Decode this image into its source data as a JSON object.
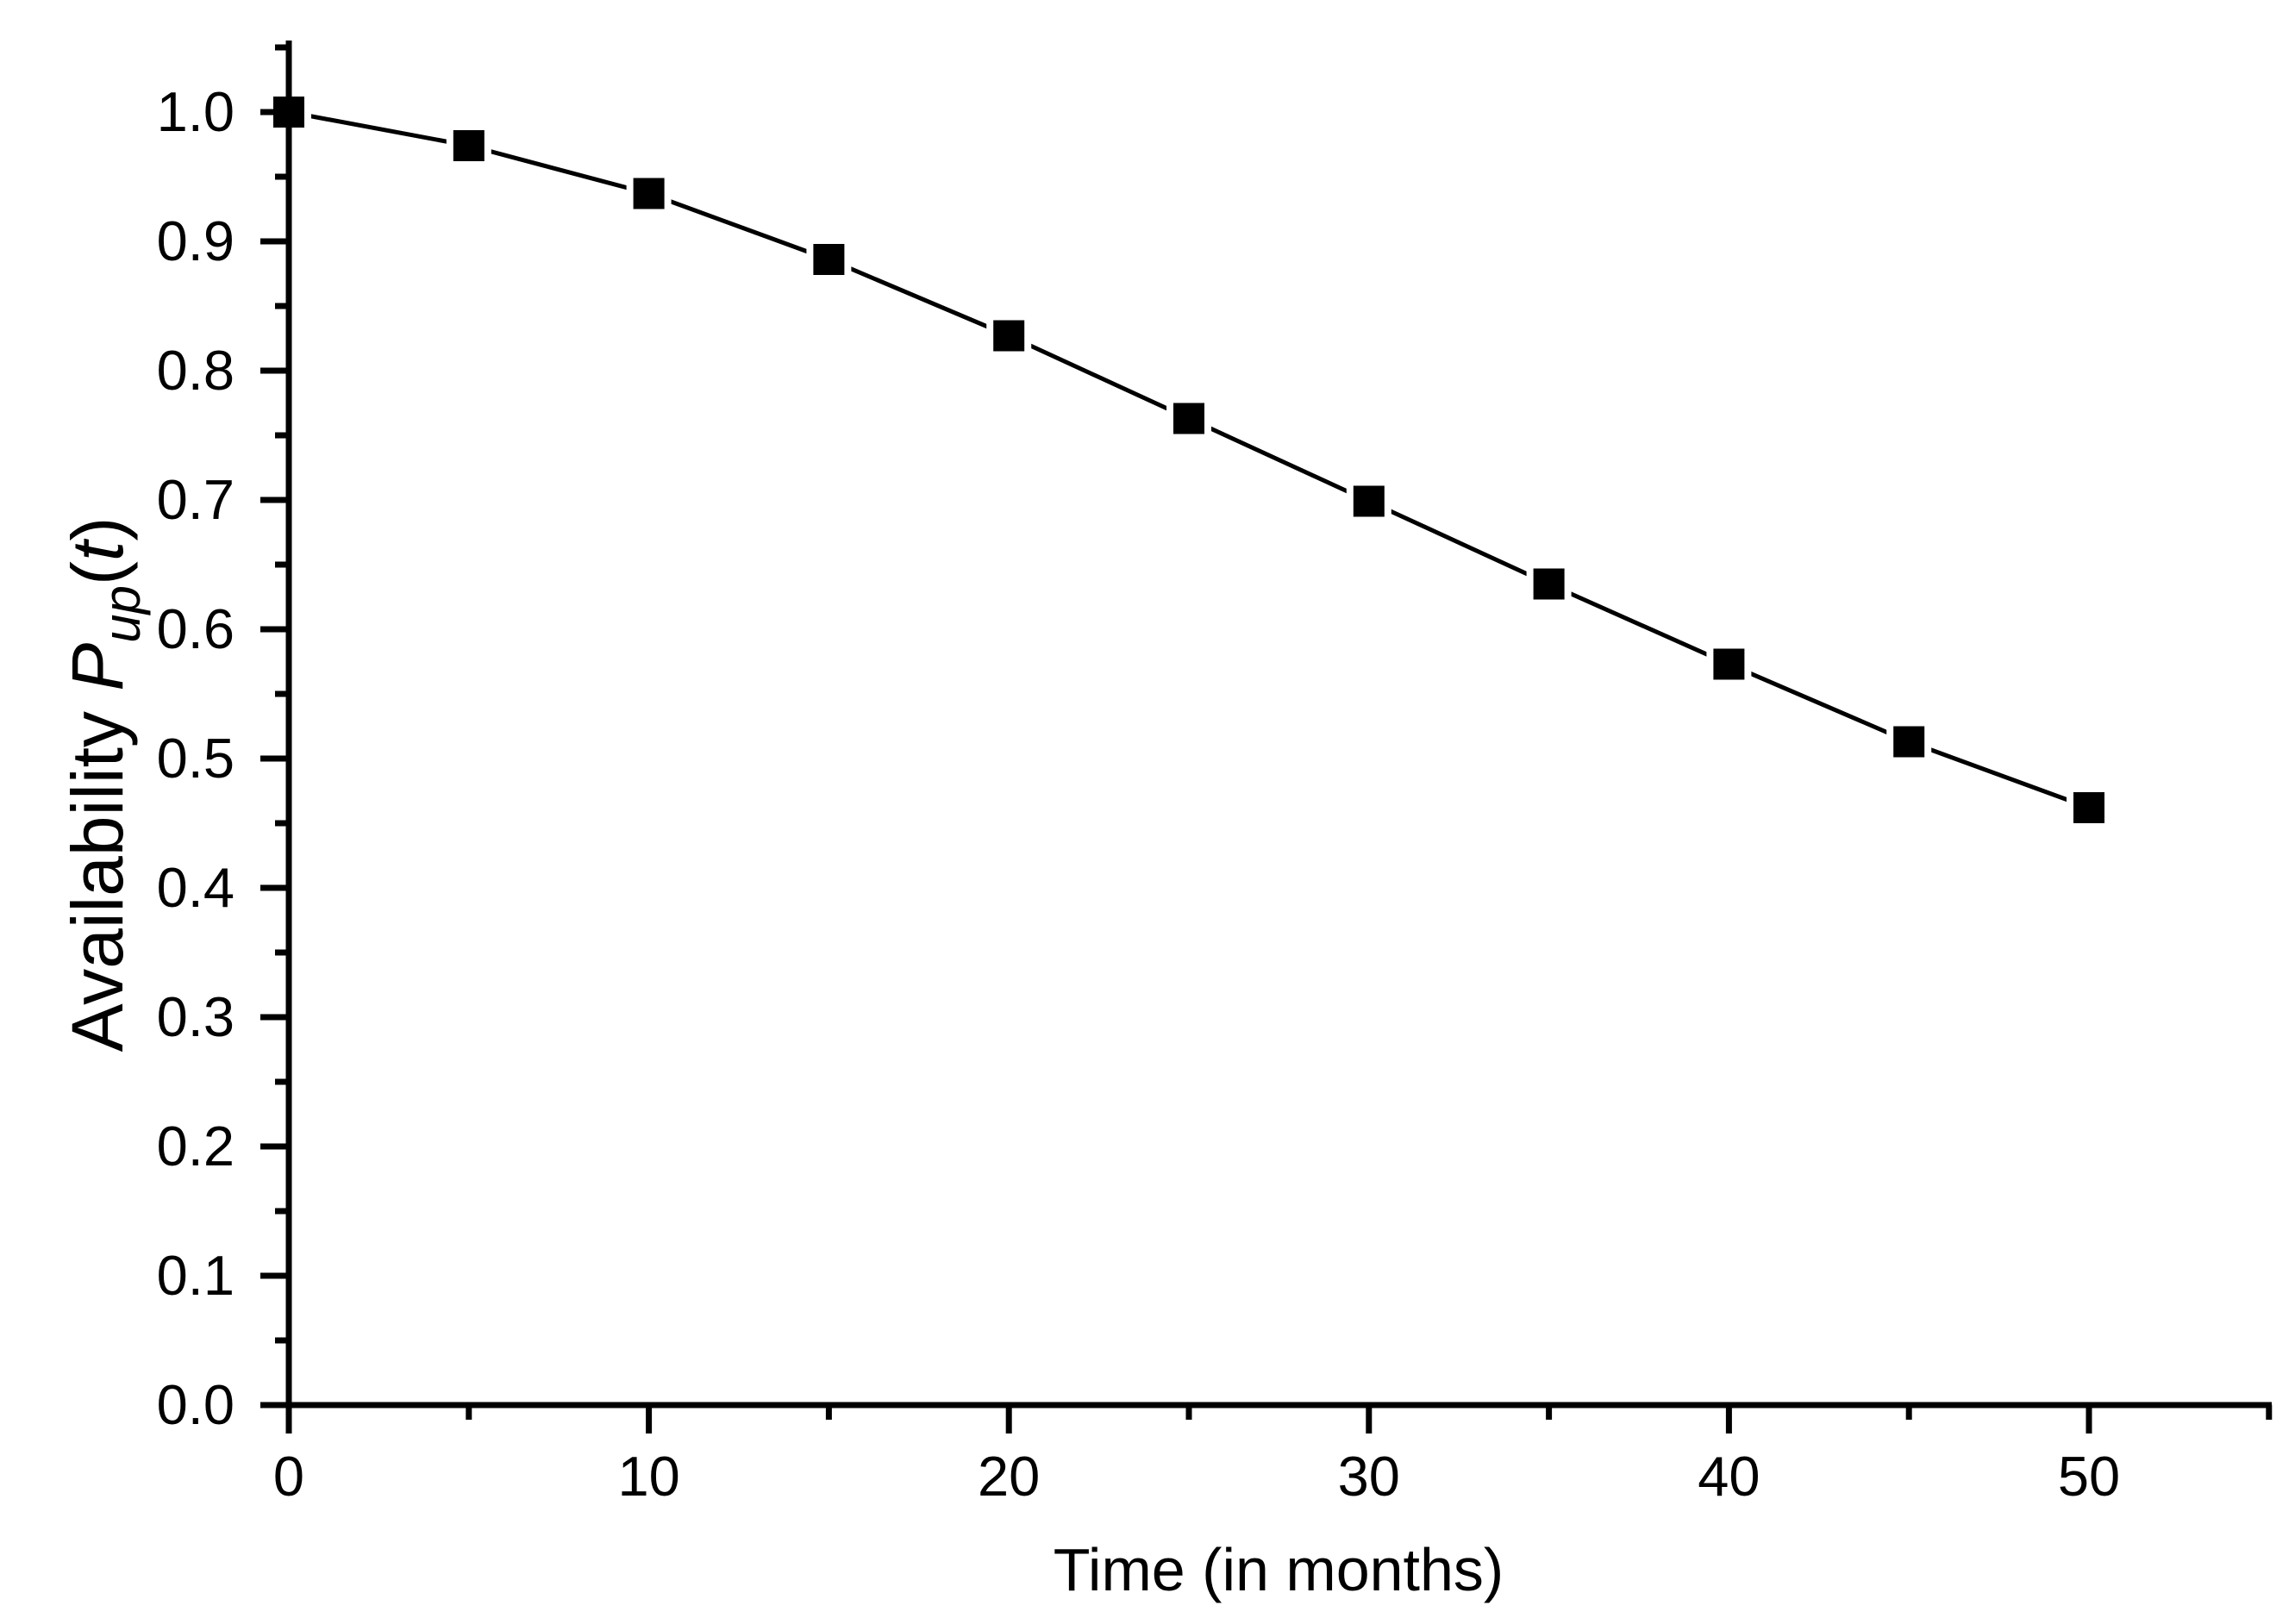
{
  "chart_data": {
    "type": "line",
    "title": "",
    "xlabel": "Time (in months)",
    "ylabel": "Availability P_up(t)",
    "ylabel_parts": {
      "prefix": "Availability ",
      "symbol": "P",
      "subscript": "up",
      "open_paren": "(",
      "variable": "t",
      "close_paren": ")"
    },
    "x": [
      0,
      5,
      10,
      15,
      20,
      25,
      30,
      35,
      40,
      45,
      50
    ],
    "series": [
      {
        "name": "Availability P_up(t)",
        "marker": "filled-square",
        "color": "#000000",
        "values": [
          1.0,
          0.974,
          0.937,
          0.886,
          0.827,
          0.763,
          0.699,
          0.635,
          0.573,
          0.513,
          0.462
        ]
      }
    ],
    "xlim": [
      0,
      55
    ],
    "ylim": [
      0.0,
      1.05
    ],
    "x_major_ticks": [
      0,
      10,
      20,
      30,
      40,
      50
    ],
    "x_tick_labels": [
      "0",
      "10",
      "20",
      "30",
      "40",
      "50"
    ],
    "x_minor_ticks": [
      5,
      15,
      25,
      35,
      45,
      55
    ],
    "y_major_ticks": [
      0.0,
      0.1,
      0.2,
      0.3,
      0.4,
      0.5,
      0.6,
      0.7,
      0.8,
      0.9,
      1.0
    ],
    "y_tick_labels": [
      "0.0",
      "0.1",
      "0.2",
      "0.3",
      "0.4",
      "0.5",
      "0.6",
      "0.7",
      "0.8",
      "0.9",
      "1.0"
    ],
    "y_minor_ticks": [
      0.05,
      0.15,
      0.25,
      0.35,
      0.45,
      0.55,
      0.65,
      0.75,
      0.85,
      0.95,
      1.05
    ],
    "grid": false,
    "legend_position": "none",
    "axis_color": "#000000",
    "line_color": "#000000",
    "marker_color": "#000000",
    "background_color": "#ffffff"
  }
}
